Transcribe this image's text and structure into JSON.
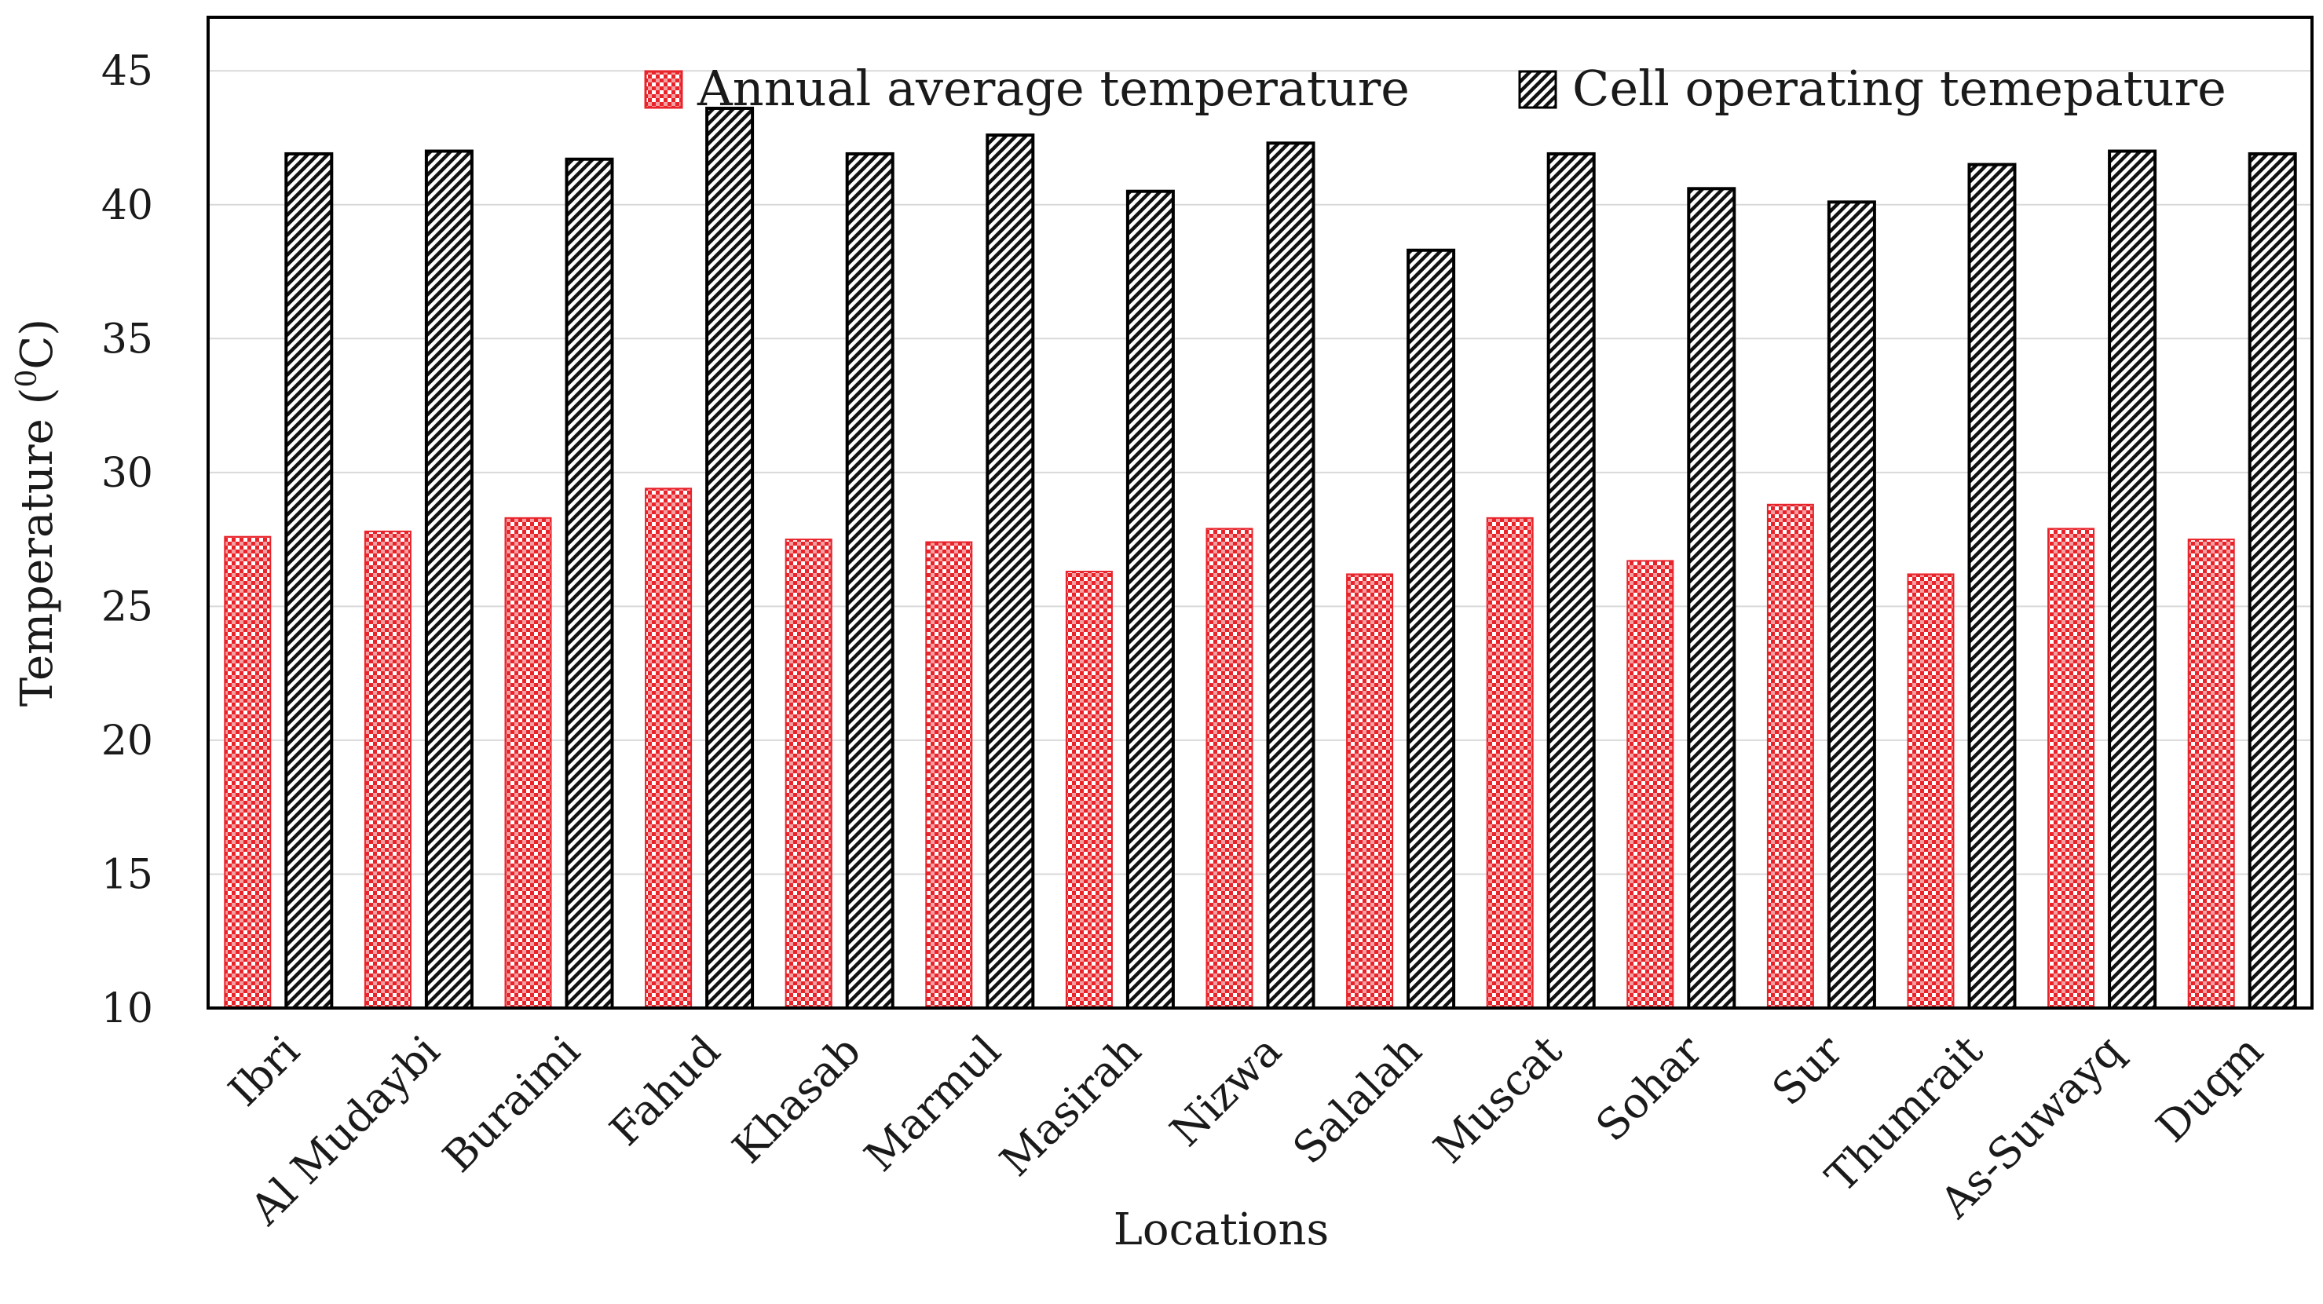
{
  "chart_data": {
    "type": "bar",
    "title": "",
    "xlabel": "Locations",
    "ylabel": "Temperature (0C)",
    "ylabel_parts": {
      "before": "Temperature (",
      "sup": "0",
      "after": "C)"
    },
    "ylim": [
      10,
      47
    ],
    "yticks": [
      10,
      15,
      20,
      25,
      30,
      35,
      40,
      45
    ],
    "grid": true,
    "legend_position": "top-right",
    "categories": [
      "Ibri",
      "Al Mudaybi",
      "Buraimi",
      "Fahud",
      "Khasab",
      "Marmul",
      "Masirah",
      "Nizwa",
      "Salalah",
      "Muscat",
      "Sohar",
      "Sur",
      "Thumrait",
      "As-Suwayq",
      "Duqm"
    ],
    "series": [
      {
        "name": "Annual average temperature",
        "color": "#e8232a",
        "pattern": "checker",
        "values": [
          27.6,
          27.8,
          28.3,
          29.4,
          27.5,
          27.4,
          26.3,
          27.9,
          26.2,
          28.3,
          26.7,
          28.8,
          26.2,
          27.9,
          27.5
        ]
      },
      {
        "name": "Cell operating temepature",
        "color": "#000000",
        "pattern": "diagonal",
        "values": [
          41.9,
          42.0,
          41.7,
          43.6,
          41.9,
          42.6,
          40.5,
          42.3,
          38.3,
          41.9,
          40.6,
          40.1,
          41.5,
          42.0,
          41.9
        ]
      }
    ]
  }
}
